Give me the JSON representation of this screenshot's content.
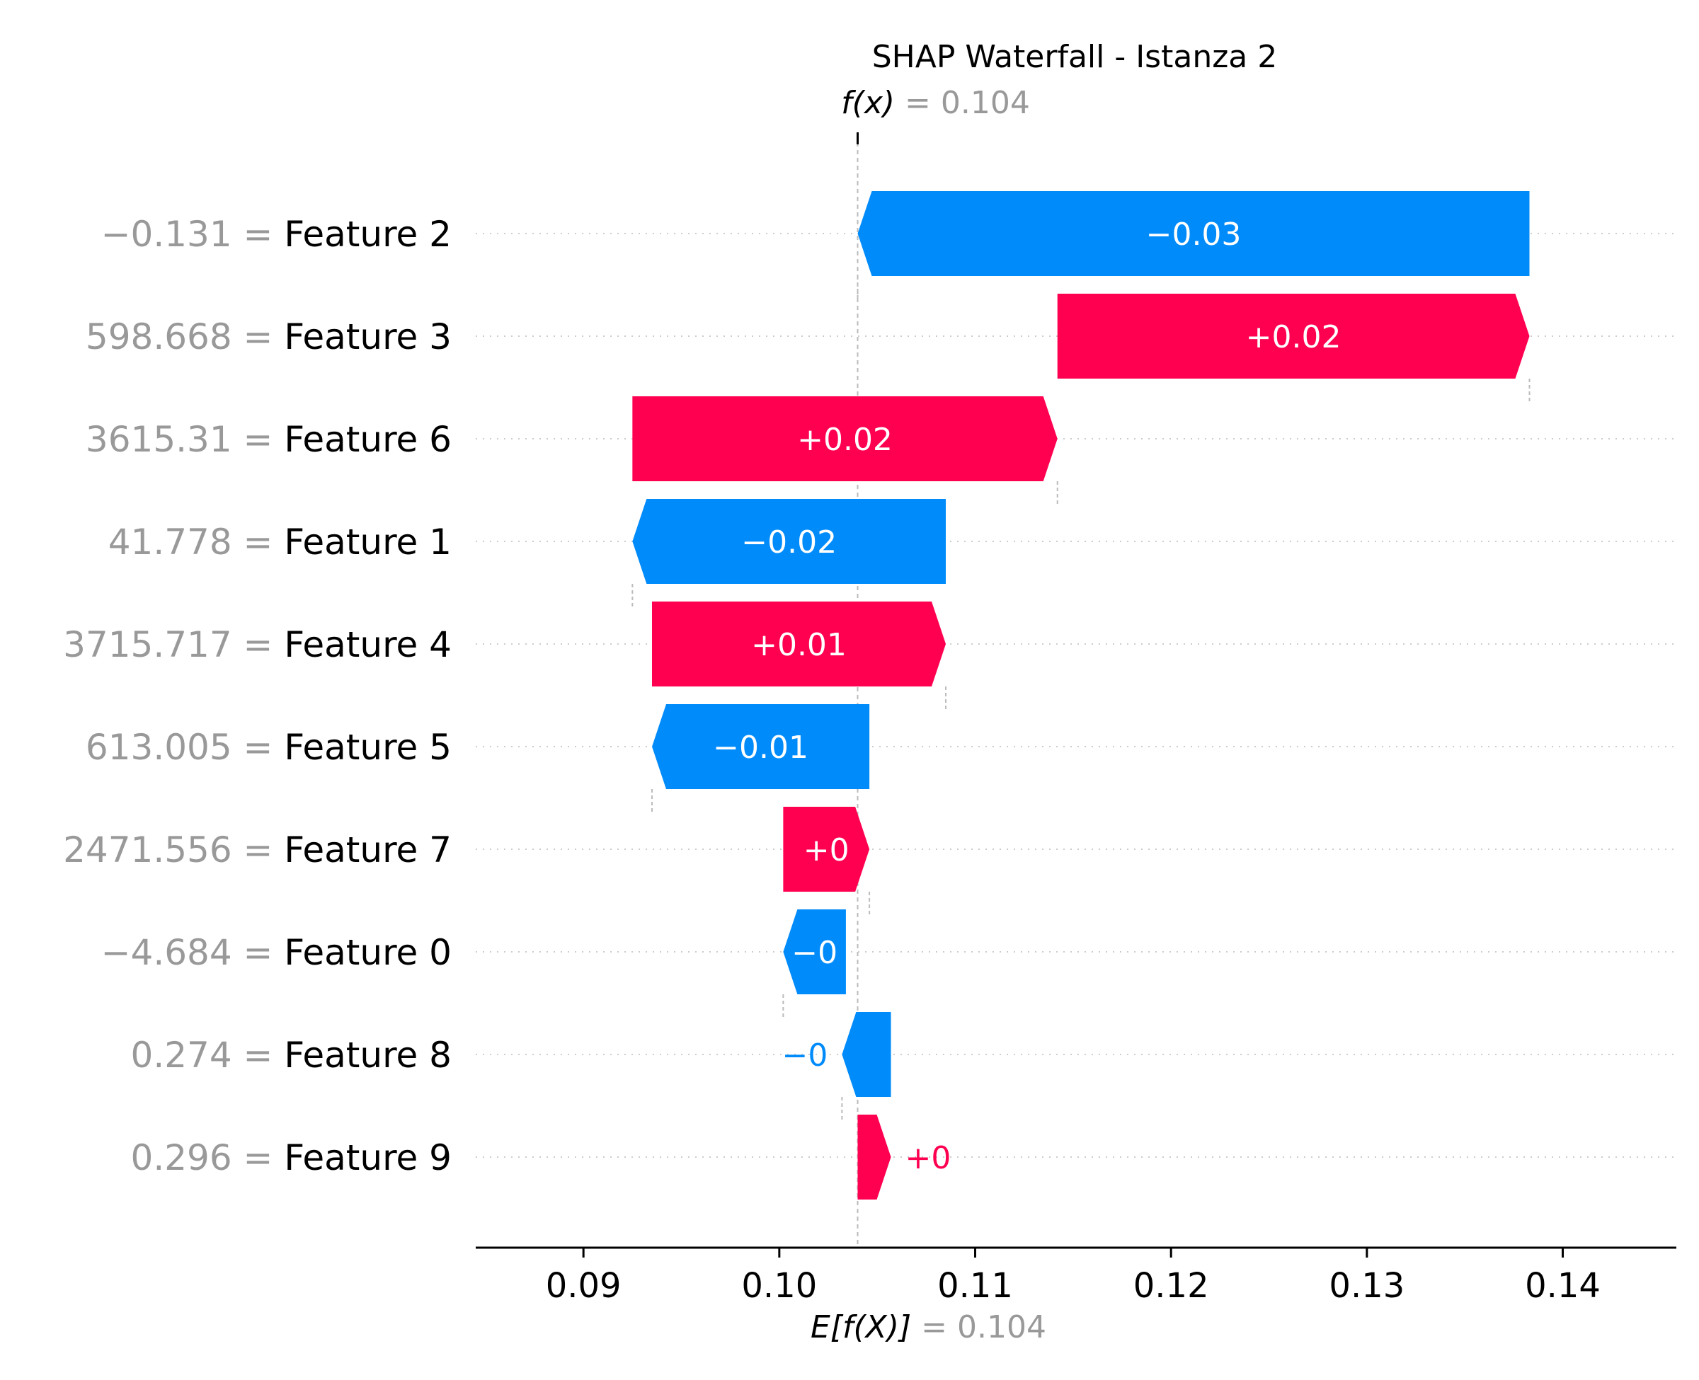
{
  "chart_data": {
    "type": "bar",
    "subtype": "shap-waterfall",
    "title": "SHAP Waterfall - Istanza 2",
    "fx_label": "f(x)",
    "fx_value": "0.104",
    "ex_label": "E[f(X)]",
    "ex_value": "0.104",
    "base_value": 0.104,
    "output_value": 0.104,
    "xlim": [
      0.0845,
      0.1458
    ],
    "xticks": [
      0.09,
      0.1,
      0.11,
      0.12,
      0.13,
      0.14
    ],
    "xtick_labels": [
      "0.09",
      "0.10",
      "0.11",
      "0.12",
      "0.13",
      "0.14"
    ],
    "grid": "dotted horizontal per feature row",
    "colors": {
      "positive": "#ff0051",
      "negative": "#008bfb",
      "feature_value": "#999999",
      "text": "#000000"
    },
    "features": [
      {
        "name": "Feature 2",
        "value_text": "−0.131",
        "start": 0.1383,
        "end": 0.104,
        "label": "−0.03",
        "sign": "negative",
        "label_inside": true
      },
      {
        "name": "Feature 3",
        "value_text": "598.668",
        "start": 0.1142,
        "end": 0.1383,
        "label": "+0.02",
        "sign": "positive",
        "label_inside": true
      },
      {
        "name": "Feature 6",
        "value_text": "3615.31",
        "start": 0.0925,
        "end": 0.1142,
        "label": "+0.02",
        "sign": "positive",
        "label_inside": true
      },
      {
        "name": "Feature 1",
        "value_text": "41.778",
        "start": 0.1085,
        "end": 0.0925,
        "label": "−0.02",
        "sign": "negative",
        "label_inside": true
      },
      {
        "name": "Feature 4",
        "value_text": "3715.717",
        "start": 0.0935,
        "end": 0.1085,
        "label": "+0.01",
        "sign": "positive",
        "label_inside": true
      },
      {
        "name": "Feature 5",
        "value_text": "613.005",
        "start": 0.1046,
        "end": 0.0935,
        "label": "−0.01",
        "sign": "negative",
        "label_inside": true
      },
      {
        "name": "Feature 7",
        "value_text": "2471.556",
        "start": 0.1002,
        "end": 0.1046,
        "label": "+0",
        "sign": "positive",
        "label_inside": true
      },
      {
        "name": "Feature 0",
        "value_text": "−4.684",
        "start": 0.1034,
        "end": 0.1002,
        "label": "−0",
        "sign": "negative",
        "label_inside": true
      },
      {
        "name": "Feature 8",
        "value_text": "0.274",
        "start": 0.1057,
        "end": 0.1032,
        "label": "−0",
        "sign": "negative",
        "label_inside": false
      },
      {
        "name": "Feature 9",
        "value_text": "0.296",
        "start": 0.104,
        "end": 0.1057,
        "label": "+0",
        "sign": "positive",
        "label_inside": false
      }
    ]
  }
}
